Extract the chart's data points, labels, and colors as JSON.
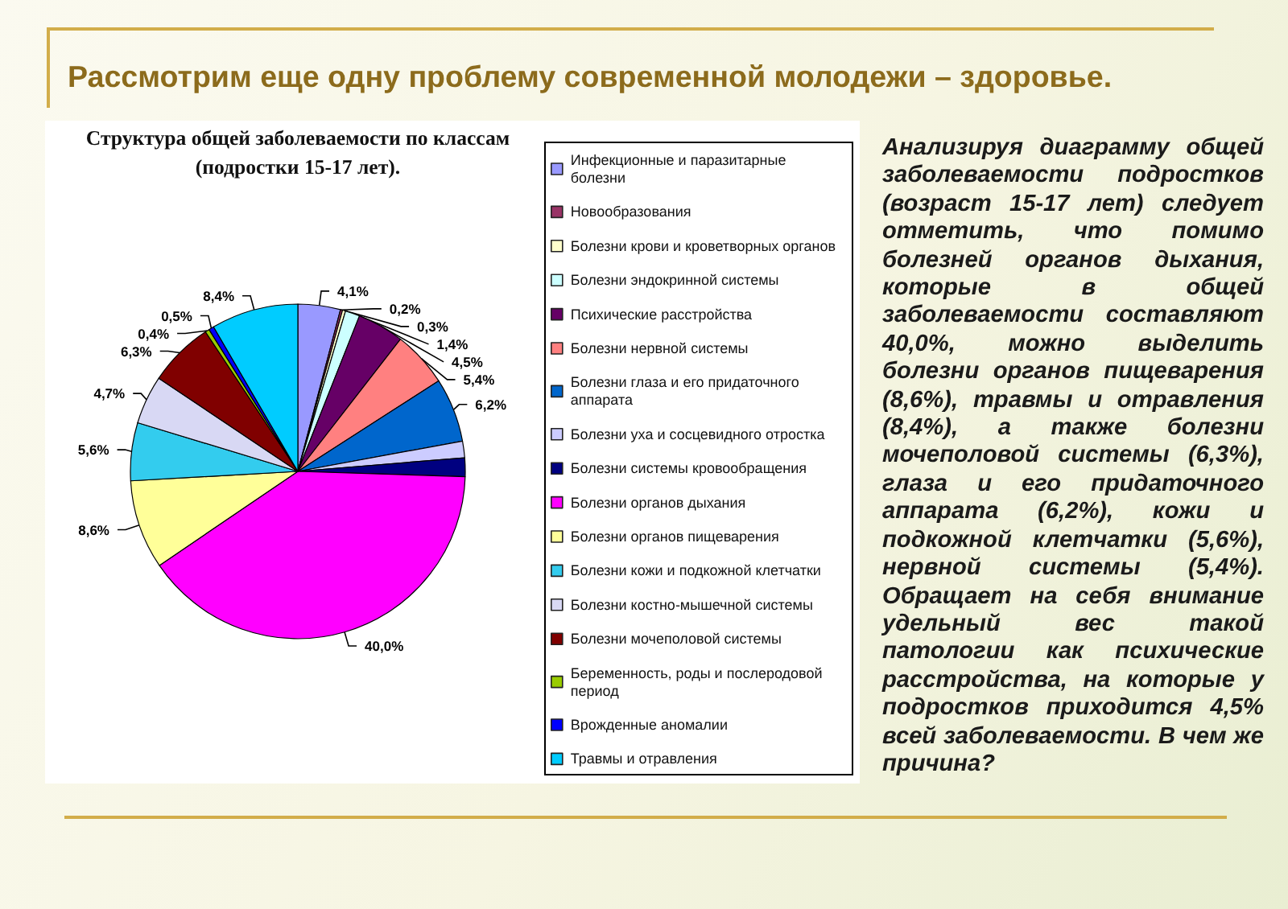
{
  "chart_data": {
    "type": "pie",
    "title": "Рассмотрим еще одну проблему современной молодежи – здоровье.",
    "subtitle": "Структура общей заболеваемости по классам (подростки 15-17 лет).",
    "categories": [
      "Инфекционные и паразитарные болезни",
      "Новообразования",
      "Болезни крови и кроветворных органов",
      "Болезни эндокринной системы",
      "Психические расстройства",
      "Болезни нервной системы",
      "Болезни глаза и его придаточного аппарата",
      "Болезни уха и сосцевидного отростка",
      "Болезни системы кровообращения",
      "Болезни органов дыхания",
      "Болезни органов пищеварения",
      "Болезни кожи и подкожной клетчатки",
      "Болезни костно-мышечной системы",
      "Болезни мочеполовой системы",
      "Беременность, роды и послеродовой период",
      "Врожденные аномалии",
      "Травмы и отравления"
    ],
    "values": [
      4.1,
      0.2,
      0.3,
      1.4,
      4.5,
      5.4,
      6.2,
      1.6,
      1.8,
      40.0,
      8.6,
      5.6,
      4.7,
      6.3,
      0.4,
      0.5,
      8.4
    ],
    "colors": [
      "#9999ff",
      "#993366",
      "#ffffcc",
      "#ccffff",
      "#660066",
      "#ff8080",
      "#0066cc",
      "#ccccff",
      "#000080",
      "#ff00ff",
      "#ffff99",
      "#33ccee",
      "#d8d8f4",
      "#800000",
      "#99cc00",
      "#0000ff",
      "#00ccff"
    ],
    "value_labels": [
      "4,1%",
      "0,2%",
      "0,3%",
      "1,4%",
      "4,5%",
      "5,4%",
      "6,2%",
      null,
      null,
      "40,0%",
      "8,6%",
      "5,6%",
      "4,7%",
      "6,3%",
      "0,4%",
      "0,5%",
      "8,4%"
    ],
    "legend": "right",
    "annotations": [
      "Анализируя диаграмму общей заболеваемости подростков (возраст 15-17 лет) следует отметить, что помимо болезней органов дыхания, которые в общей заболеваемости составляют 40,0%, можно выделить болезни органов пищеварения (8,6%), травмы и отравления (8,4%), а также болезни мочеполовой системы (6,3%), глаза и его придаточного аппарата (6,2%), кожи и подкожной клетчатки (5,6%), нервной системы (5,4%). Обращает на себя внимание удельный вес такой патологии как психические расстройства, на которые у подростков приходится 4,5% всей заболеваемости. В чем же причина?"
    ]
  }
}
